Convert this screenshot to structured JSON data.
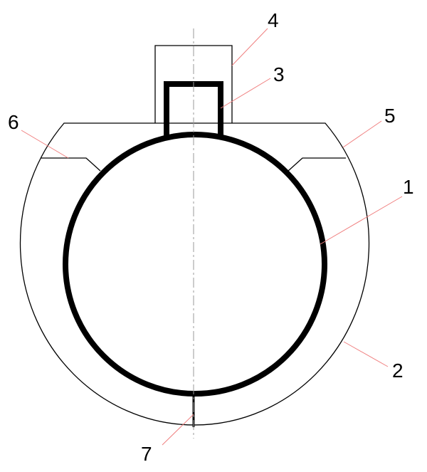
{
  "labels": {
    "l1": "1",
    "l2": "2",
    "l3": "3",
    "l4": "4",
    "l5": "5",
    "l6": "6",
    "l7": "7"
  },
  "colors": {
    "outline": "#000000",
    "leader": "#f08080",
    "centerline": "#999999"
  }
}
